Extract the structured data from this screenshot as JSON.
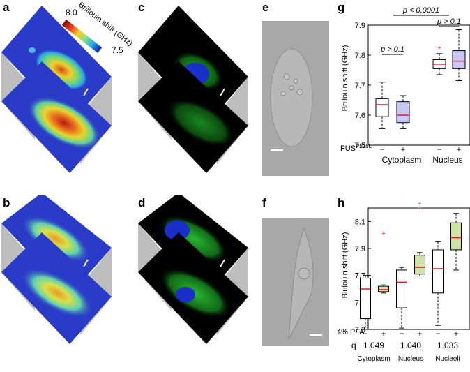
{
  "panel_labels": {
    "a": "a",
    "b": "b",
    "c": "c",
    "d": "d",
    "e": "e",
    "f": "f",
    "g": "g",
    "h": "h"
  },
  "colorbar": {
    "label": "Brillouin shift (GHz)",
    "max": "8.0",
    "min": "7.5"
  },
  "colors": {
    "box_purple": "#c8c8f4",
    "box_green": "#cce3a8",
    "median": "#e8172a",
    "outlier": "#e8172a",
    "cell_blue": "#2a3bc7",
    "gray_wall": "#bdbdbd"
  },
  "chart_data": [
    {
      "type": "box",
      "panel": "g",
      "ylabel": "Brillouin shift (GHz)",
      "ylim": [
        7.5,
        7.9
      ],
      "yticks": [
        "7.5",
        "7.6",
        "7.7",
        "7.8",
        "7.9"
      ],
      "row_label": "FUS",
      "row_label_sup": "P525L",
      "tick_signs": [
        "−",
        "+",
        "−",
        "+"
      ],
      "groups": [
        "Cytoplasm",
        "Nucleus"
      ],
      "boxes": [
        {
          "group": "Cytoplasm",
          "fus": "−",
          "fill": "#ffffff",
          "whisker_low": 7.555,
          "q1": 7.595,
          "median": 7.635,
          "q3": 7.655,
          "whisker_high": 7.71,
          "outliers": []
        },
        {
          "group": "Cytoplasm",
          "fus": "+",
          "fill": "#c8c8f4",
          "whisker_low": 7.555,
          "q1": 7.575,
          "median": 7.6,
          "q3": 7.645,
          "whisker_high": 7.665,
          "outliers": []
        },
        {
          "group": "Nucleus",
          "fus": "−",
          "fill": "#ffffff",
          "whisker_low": 7.735,
          "q1": 7.755,
          "median": 7.77,
          "q3": 7.785,
          "whisker_high": 7.805,
          "outliers": [
            7.825
          ]
        },
        {
          "group": "Nucleus",
          "fus": "+",
          "fill": "#c8c8f4",
          "whisker_low": 7.715,
          "q1": 7.755,
          "median": 7.78,
          "q3": 7.815,
          "whisker_high": 7.885,
          "outliers": []
        }
      ],
      "annotations": [
        "p < 0.0001",
        "p > 0.1",
        "p > 0.1"
      ]
    },
    {
      "type": "box",
      "panel": "h",
      "ylabel": "Blulouin shift (GHz)",
      "ylim": [
        7.3,
        8.2
      ],
      "yticks": [
        "7.3",
        "7.5",
        "7.7",
        "7.9",
        "8.1"
      ],
      "row_label": "4% PFA",
      "tick_signs": [
        "−",
        "+",
        "−",
        "+",
        "−",
        "+"
      ],
      "q_label": "q",
      "q_values": [
        "1.049",
        "1.040",
        "1.033"
      ],
      "groups": [
        "Cytoplasm",
        "Nucleus",
        "Nucleoli"
      ],
      "boxes": [
        {
          "group": "Cytoplasm",
          "pfa": "−",
          "fill": "#ffffff",
          "whisker_low": 7.3,
          "q1": 7.38,
          "median": 7.6,
          "q3": 7.68,
          "whisker_high": 7.7,
          "outliers": []
        },
        {
          "group": "Cytoplasm",
          "pfa": "+",
          "fill": "#cce3a8",
          "whisker_low": 7.57,
          "q1": 7.58,
          "median": 7.595,
          "q3": 7.62,
          "whisker_high": 7.63,
          "outliers": [
            8.01
          ]
        },
        {
          "group": "Nucleus",
          "pfa": "−",
          "fill": "#ffffff",
          "whisker_low": 7.31,
          "q1": 7.46,
          "median": 7.65,
          "q3": 7.74,
          "whisker_high": 7.76,
          "outliers": []
        },
        {
          "group": "Nucleus",
          "pfa": "+",
          "fill": "#cce3a8",
          "whisker_low": 7.68,
          "q1": 7.71,
          "median": 7.76,
          "q3": 7.85,
          "whisker_high": 7.87,
          "outliers": [
            8.2,
            8.23
          ]
        },
        {
          "group": "Nucleoli",
          "pfa": "−",
          "fill": "#ffffff",
          "whisker_low": 7.33,
          "q1": 7.57,
          "median": 7.75,
          "q3": 7.89,
          "whisker_high": 7.95,
          "outliers": []
        },
        {
          "group": "Nucleoli",
          "pfa": "+",
          "fill": "#cce3a8",
          "whisker_low": 7.74,
          "q1": 7.89,
          "median": 7.98,
          "q3": 8.09,
          "whisker_high": 8.16,
          "outliers": []
        }
      ]
    }
  ]
}
